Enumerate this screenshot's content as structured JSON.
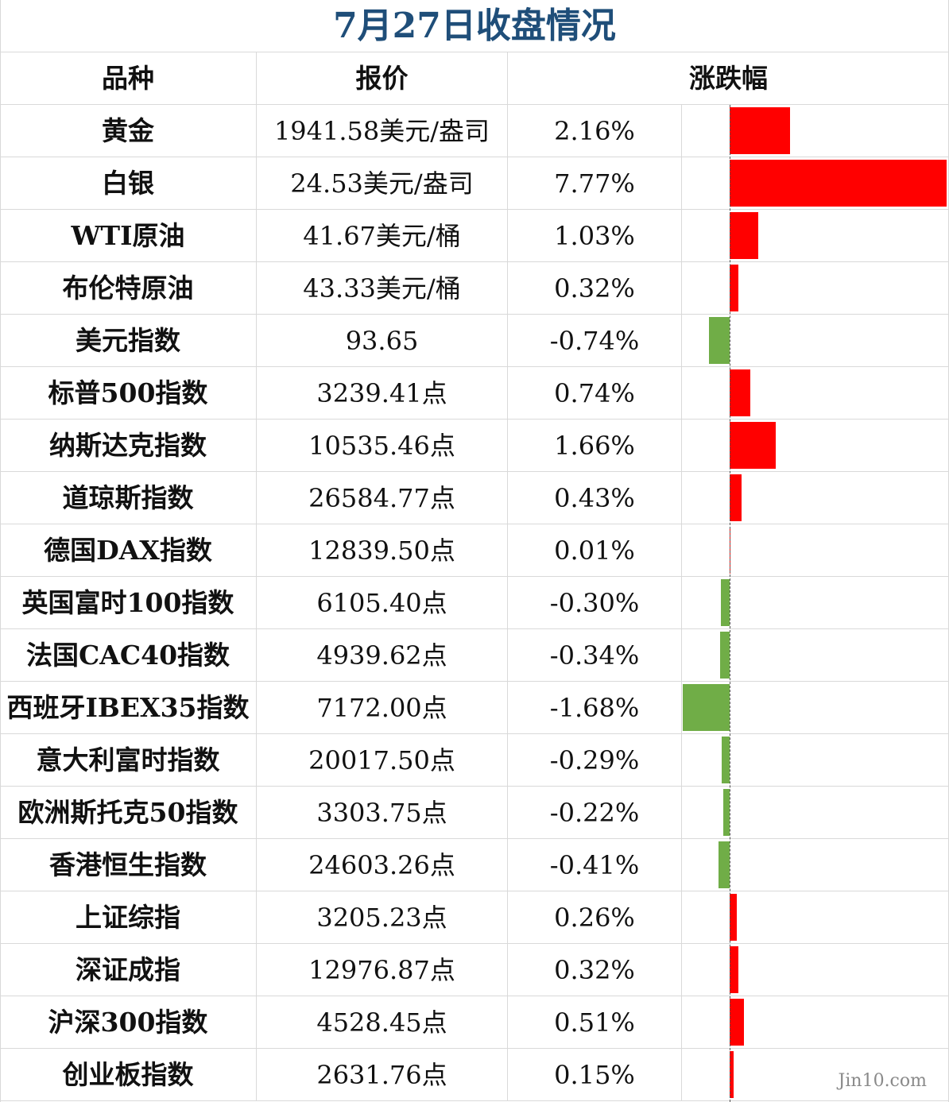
{
  "title": "7月27日收盘情况",
  "headers": {
    "name": "品种",
    "price": "报价",
    "change": "涨跌幅"
  },
  "colors": {
    "up": "#ff0000",
    "down": "#70ad47",
    "title": "#1f4e79"
  },
  "rows": [
    {
      "name": "黄金",
      "price": "1941.58美元/盎司",
      "change": "2.16%",
      "value": 2.16
    },
    {
      "name": "白银",
      "price": "24.53美元/盎司",
      "change": "7.77%",
      "value": 7.77
    },
    {
      "name": "WTI原油",
      "price": "41.67美元/桶",
      "change": "1.03%",
      "value": 1.03
    },
    {
      "name": "布伦特原油",
      "price": "43.33美元/桶",
      "change": "0.32%",
      "value": 0.32
    },
    {
      "name": "美元指数",
      "price": "93.65",
      "change": "-0.74%",
      "value": -0.74
    },
    {
      "name": "标普500指数",
      "price": "3239.41点",
      "change": "0.74%",
      "value": 0.74
    },
    {
      "name": "纳斯达克指数",
      "price": "10535.46点",
      "change": "1.66%",
      "value": 1.66
    },
    {
      "name": "道琼斯指数",
      "price": "26584.77点",
      "change": "0.43%",
      "value": 0.43
    },
    {
      "name": "德国DAX指数",
      "price": "12839.50点",
      "change": "0.01%",
      "value": 0.01
    },
    {
      "name": "英国富时100指数",
      "price": "6105.40点",
      "change": "-0.30%",
      "value": -0.3
    },
    {
      "name": "法国CAC40指数",
      "price": "4939.62点",
      "change": "-0.34%",
      "value": -0.34
    },
    {
      "name": "西班牙IBEX35指数",
      "price": "7172.00点",
      "change": "-1.68%",
      "value": -1.68
    },
    {
      "name": "意大利富时指数",
      "price": "20017.50点",
      "change": "-0.29%",
      "value": -0.29
    },
    {
      "name": "欧洲斯托克50指数",
      "price": "3303.75点",
      "change": "-0.22%",
      "value": -0.22
    },
    {
      "name": "香港恒生指数",
      "price": "24603.26点",
      "change": "-0.41%",
      "value": -0.41
    },
    {
      "name": "上证综指",
      "price": "3205.23点",
      "change": "0.26%",
      "value": 0.26
    },
    {
      "name": "深证成指",
      "price": "12976.87点",
      "change": "0.32%",
      "value": 0.32
    },
    {
      "name": "沪深300指数",
      "price": "4528.45点",
      "change": "0.51%",
      "value": 0.51
    },
    {
      "name": "创业板指数",
      "price": "2631.76点",
      "change": "0.15%",
      "value": 0.15
    }
  ],
  "watermark": "Jin10.com"
}
